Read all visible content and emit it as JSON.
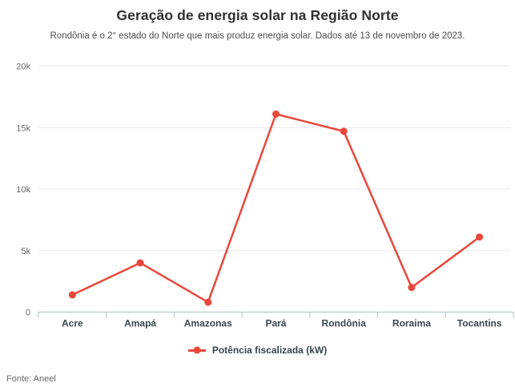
{
  "header": {
    "title": "Geração de energia solar na Região Norte",
    "subtitle": "Rondônia é o 2° estado do Norte que mais produz energia solar. Dados até 13 de novembro de 2023."
  },
  "chart_data": {
    "type": "line",
    "title": "Geração de energia solar na Região Norte",
    "subtitle": "Rondônia é o 2° estado do Norte que mais produz energia solar. Dados até 13 de novembro de 2023.",
    "categories": [
      "Acre",
      "Amapá",
      "Amazonas",
      "Pará",
      "Rondônia",
      "Roraima",
      "Tocantins"
    ],
    "series": [
      {
        "name": "Potência fiscalizada (kW)",
        "values": [
          1400,
          4000,
          800,
          16100,
          14700,
          2000,
          6100
        ]
      }
    ],
    "ylim": [
      0,
      20000
    ],
    "yticks": [
      {
        "value": 0,
        "label": "0"
      },
      {
        "value": 5000,
        "label": "5k"
      },
      {
        "value": 10000,
        "label": "10k"
      },
      {
        "value": 15000,
        "label": "15k"
      },
      {
        "value": 20000,
        "label": "20k"
      }
    ],
    "grid": "horizontal",
    "legend_position": "bottom",
    "marker": "circle"
  },
  "legend": {
    "label": "Potência fiscalizada (kW)"
  },
  "footer": {
    "source": "Fonte: Aneel"
  },
  "colors": {
    "accent": "#e8473c",
    "grid": "#e8e8e8",
    "axis": "#b0bec5",
    "title": "#2f2f2f",
    "subtitle": "#4c4c4c",
    "category_label": "#37474f",
    "tick_label": "#666666"
  }
}
